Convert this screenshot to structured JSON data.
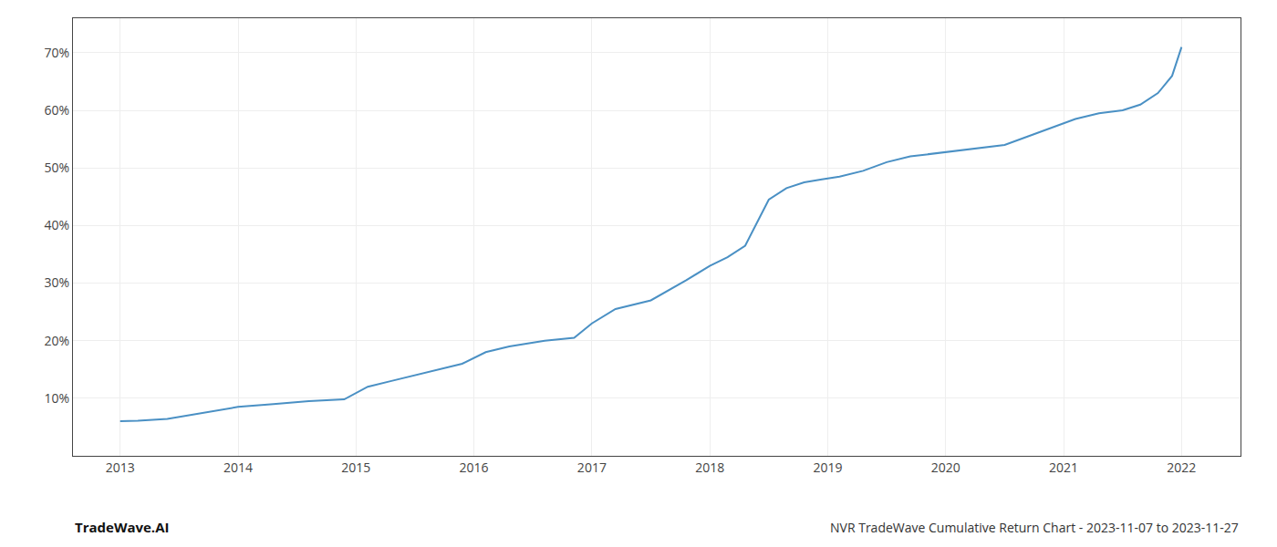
{
  "chart_data": {
    "type": "line",
    "title": "NVR TradeWave Cumulative Return Chart - 2023-11-07 to 2023-11-27",
    "annotations": [
      "TradeWave.AI"
    ],
    "x": [
      2013.0,
      2013.15,
      2013.4,
      2013.7,
      2014.0,
      2014.3,
      2014.6,
      2014.9,
      2015.1,
      2015.3,
      2015.6,
      2015.9,
      2016.1,
      2016.3,
      2016.6,
      2016.85,
      2017.0,
      2017.2,
      2017.5,
      2017.8,
      2018.0,
      2018.15,
      2018.3,
      2018.5,
      2018.65,
      2018.8,
      2018.95,
      2019.1,
      2019.3,
      2019.5,
      2019.7,
      2019.9,
      2020.1,
      2020.3,
      2020.5,
      2020.7,
      2020.9,
      2021.1,
      2021.3,
      2021.5,
      2021.65,
      2021.8,
      2021.92,
      2022.0
    ],
    "values": [
      6.0,
      6.1,
      6.4,
      7.5,
      8.5,
      9.0,
      9.5,
      9.8,
      12.0,
      13.0,
      14.5,
      16.0,
      18.0,
      19.0,
      20.0,
      20.5,
      23.0,
      25.5,
      27.0,
      30.5,
      33.0,
      34.5,
      36.5,
      44.5,
      46.5,
      47.5,
      48.0,
      48.5,
      49.5,
      51.0,
      52.0,
      52.5,
      53.0,
      53.5,
      54.0,
      55.5,
      57.0,
      58.5,
      59.5,
      60.0,
      61.0,
      63.0,
      66.0,
      71.0
    ],
    "color": "#4a90c4",
    "xlim": [
      2012.6,
      2022.5
    ],
    "ylim": [
      0,
      76
    ],
    "xticks": [
      2013,
      2014,
      2015,
      2016,
      2017,
      2018,
      2019,
      2020,
      2021,
      2022
    ],
    "yticks": [
      {
        "value": 10,
        "label": "10%"
      },
      {
        "value": 20,
        "label": "20%"
      },
      {
        "value": 30,
        "label": "30%"
      },
      {
        "value": 40,
        "label": "40%"
      },
      {
        "value": 50,
        "label": "50%"
      },
      {
        "value": 60,
        "label": "60%"
      },
      {
        "value": 70,
        "label": "70%"
      }
    ],
    "grid": true
  }
}
